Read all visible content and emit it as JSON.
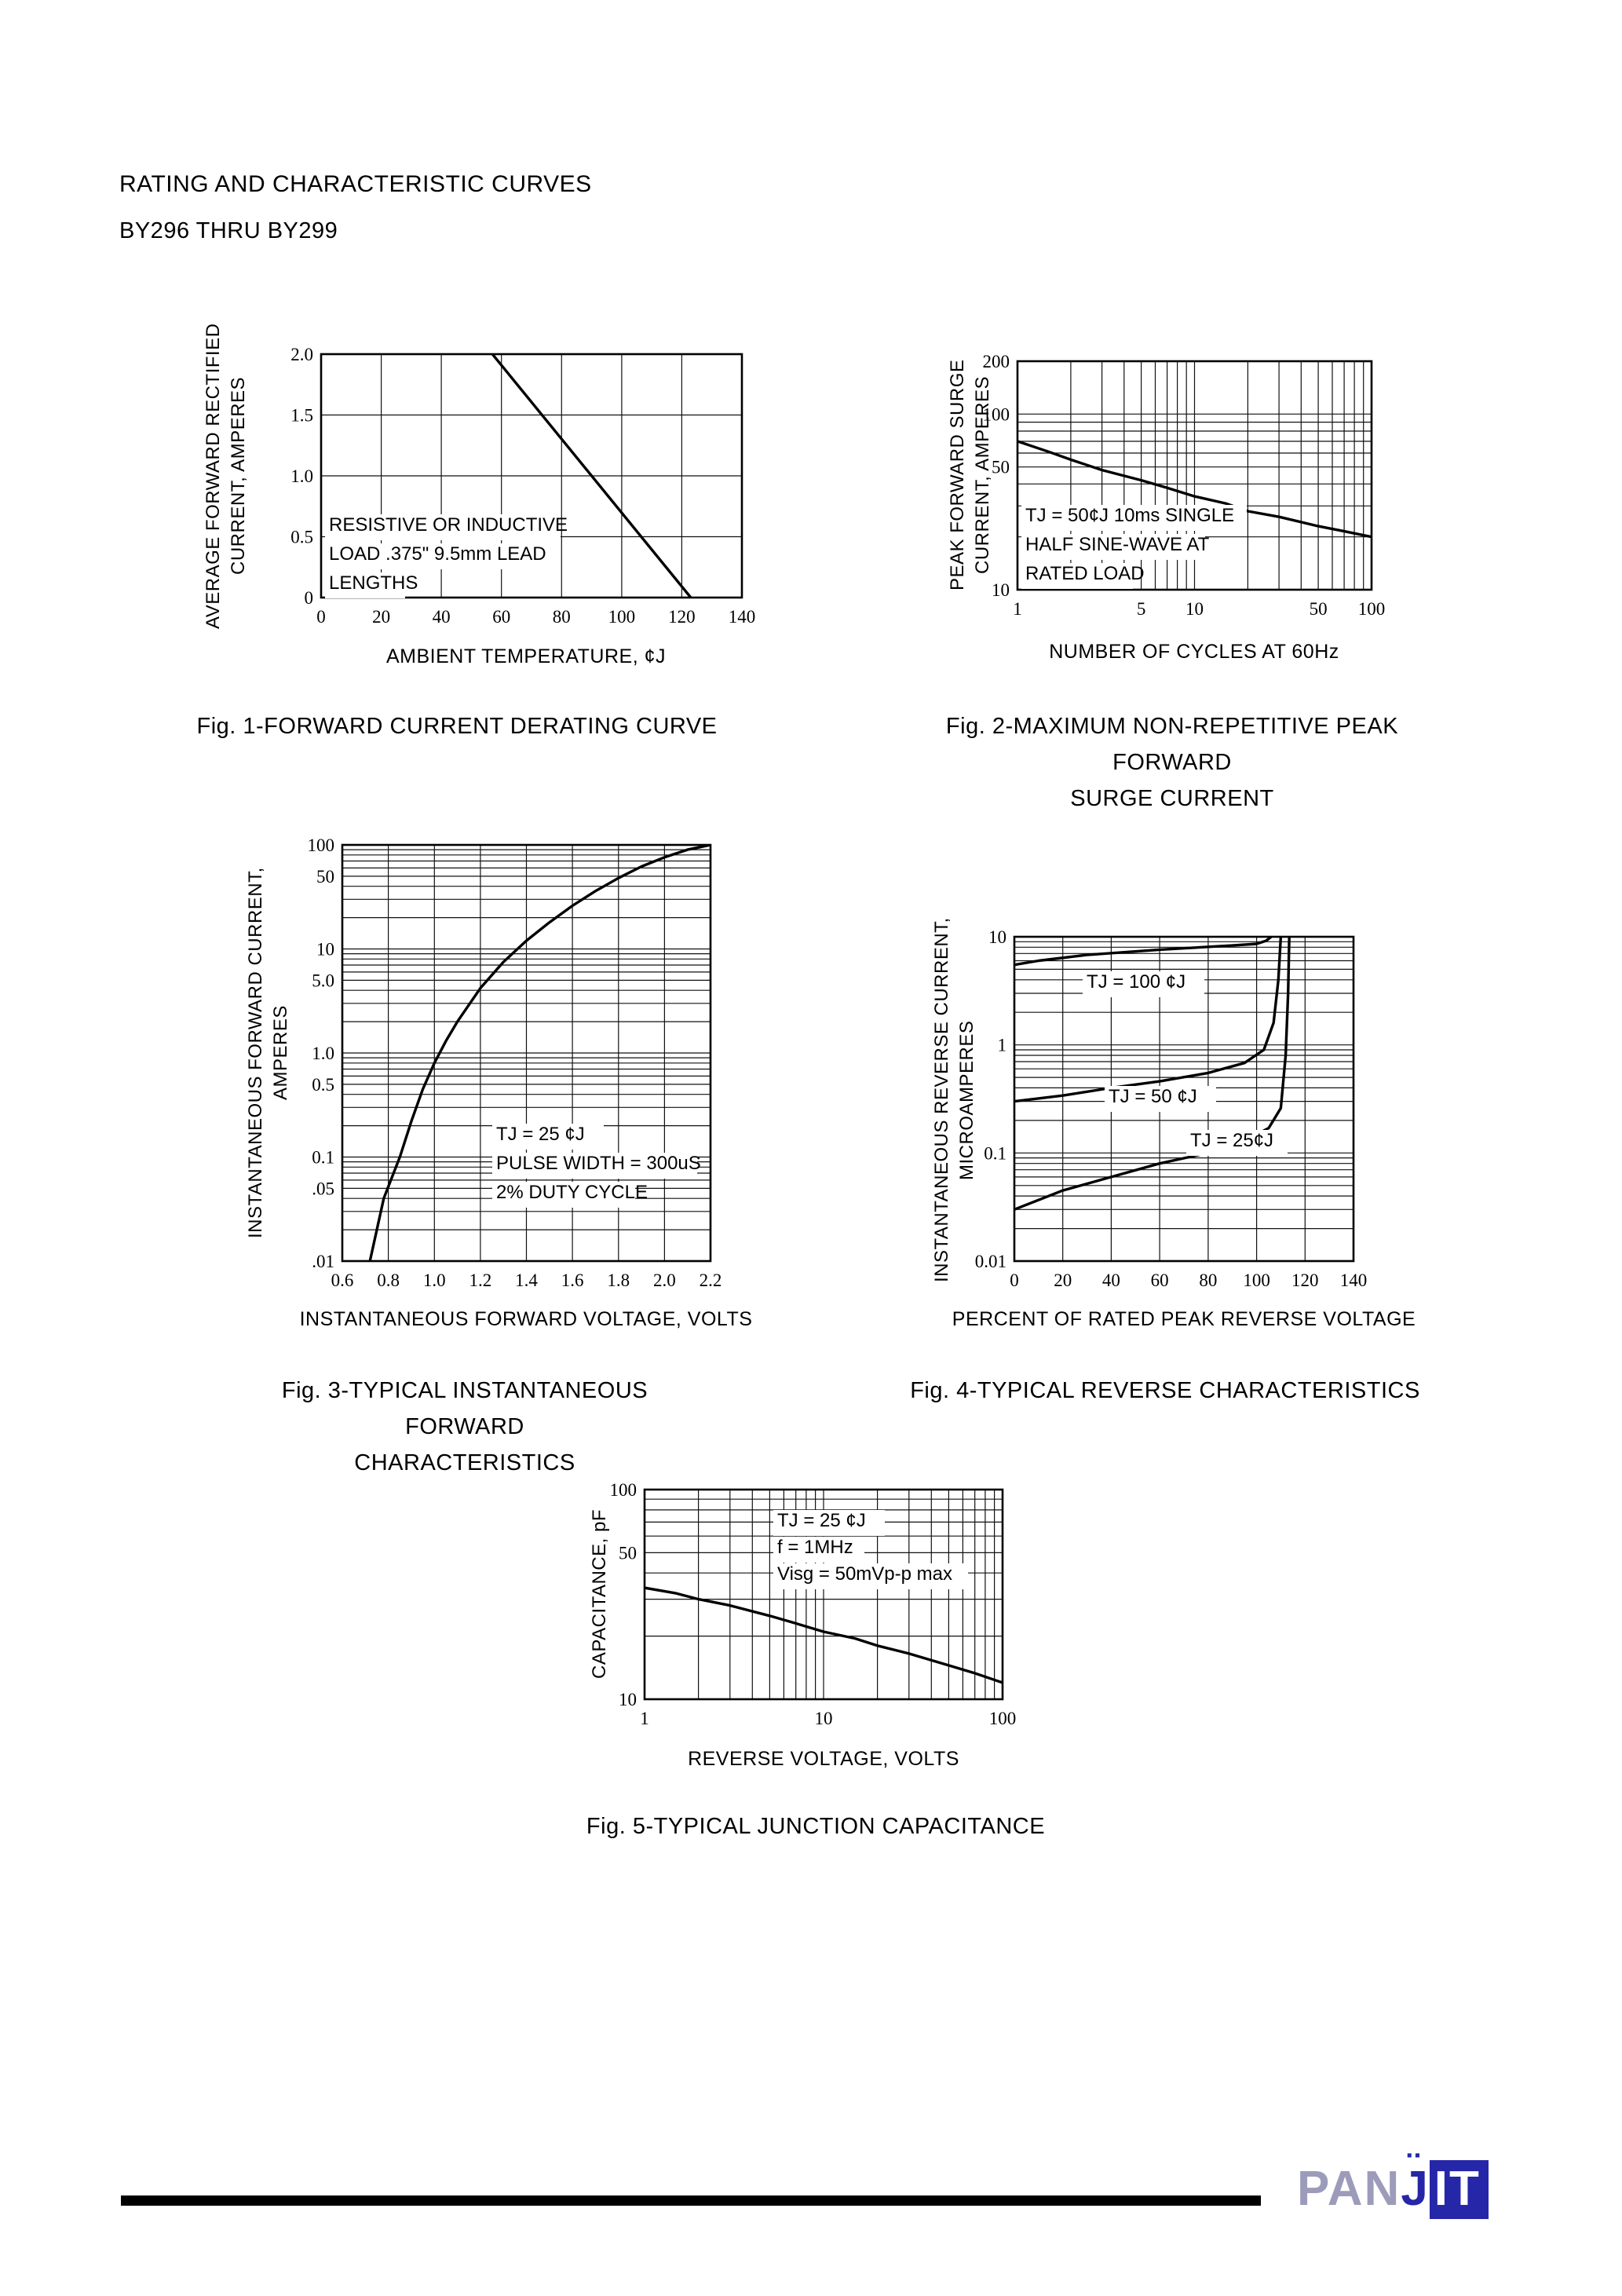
{
  "page": {
    "title": "RATING AND CHARACTERISTIC CURVES",
    "subtitle": "BY296 THRU BY299"
  },
  "footer": {
    "brand_pan": "PAN",
    "brand_j": "J",
    "brand_it": "IT",
    "brand_color": "#2626a8"
  },
  "chart_data": [
    {
      "id": "fig1",
      "type": "line",
      "title": "Fig. 1-FORWARD CURRENT DERATING CURVE",
      "xlabel": "AMBIENT TEMPERATURE, ¢J",
      "ylabel_lines": [
        "AVERAGE FORWARD RECTIFIED",
        "CURRENT, AMPERES"
      ],
      "xscale": "linear",
      "yscale": "linear",
      "xlim": [
        0,
        140
      ],
      "ylim": [
        0,
        2.0
      ],
      "xticks": [
        {
          "v": 0,
          "l": "0"
        },
        {
          "v": 20,
          "l": "20"
        },
        {
          "v": 40,
          "l": "40"
        },
        {
          "v": 60,
          "l": "60"
        },
        {
          "v": 80,
          "l": "80"
        },
        {
          "v": 100,
          "l": "100"
        },
        {
          "v": 120,
          "l": "120"
        },
        {
          "v": 140,
          "l": "140"
        }
      ],
      "yticks": [
        {
          "v": 2.0,
          "l": "2.0"
        },
        {
          "v": 1.5,
          "l": "1.5"
        },
        {
          "v": 1.0,
          "l": "1.0"
        },
        {
          "v": 0.5,
          "l": "0.5"
        },
        {
          "v": 0,
          "l": "0"
        }
      ],
      "series": [
        {
          "name": "derating-curve",
          "points": [
            [
              57,
              2.0
            ],
            [
              123,
              0
            ]
          ]
        }
      ],
      "annotations": [
        {
          "lines": [
            "RESISTIVE OR INDUCTIVE",
            "LOAD .375\" 9.5mm LEAD",
            "LENGTHS"
          ]
        }
      ]
    },
    {
      "id": "fig2",
      "type": "line",
      "title": "Fig. 2-MAXIMUM NON-REPETITIVE PEAK FORWARD SURGE CURRENT",
      "title_lines": [
        "Fig. 2-MAXIMUM NON-REPETITIVE PEAK FORWARD",
        "SURGE CURRENT"
      ],
      "xlabel": "NUMBER OF CYCLES AT 60Hz",
      "ylabel_lines": [
        "PEAK FORWARD SURGE",
        "CURRENT, AMPERES"
      ],
      "xscale": "log",
      "yscale": "log",
      "xlim": [
        1,
        100
      ],
      "ylim": [
        10,
        200
      ],
      "xticks": [
        {
          "v": 1,
          "l": "1"
        },
        {
          "v": 5,
          "l": "5"
        },
        {
          "v": 10,
          "l": "10"
        },
        {
          "v": 50,
          "l": "50"
        },
        {
          "v": 100,
          "l": "100"
        }
      ],
      "yticks": [
        {
          "v": 200,
          "l": "200"
        },
        {
          "v": 100,
          "l": "100"
        },
        {
          "v": 50,
          "l": "50"
        },
        {
          "v": 10,
          "l": "10"
        }
      ],
      "series": [
        {
          "name": "surge-current-curve",
          "points": [
            [
              1,
              70
            ],
            [
              1.5,
              61
            ],
            [
              2,
              55
            ],
            [
              3,
              48
            ],
            [
              5,
              42
            ],
            [
              7,
              38
            ],
            [
              10,
              34
            ],
            [
              15,
              31
            ],
            [
              20,
              28
            ],
            [
              30,
              26
            ],
            [
              50,
              23
            ],
            [
              70,
              21.5
            ],
            [
              100,
              20
            ]
          ]
        }
      ],
      "annotations": [
        {
          "lines": [
            "TJ = 50¢J 10ms SINGLE",
            "HALF SINE-WAVE AT",
            "RATED LOAD"
          ]
        }
      ]
    },
    {
      "id": "fig3",
      "type": "line",
      "title": "Fig. 3-TYPICAL INSTANTANEOUS FORWARD CHARACTERISTICS",
      "title_lines": [
        "Fig. 3-TYPICAL INSTANTANEOUS FORWARD",
        "CHARACTERISTICS"
      ],
      "xlabel": "INSTANTANEOUS FORWARD VOLTAGE, VOLTS",
      "ylabel_lines": [
        "INSTANTANEOUS FORWARD CURRENT,",
        "AMPERES"
      ],
      "xscale": "linear",
      "yscale": "log",
      "xlim": [
        0.6,
        2.2
      ],
      "ylim": [
        0.01,
        100
      ],
      "xticks": [
        {
          "v": 0.6,
          "l": "0.6"
        },
        {
          "v": 0.8,
          "l": "0.8"
        },
        {
          "v": 1.0,
          "l": "1.0"
        },
        {
          "v": 1.2,
          "l": "1.2"
        },
        {
          "v": 1.4,
          "l": "1.4"
        },
        {
          "v": 1.6,
          "l": "1.6"
        },
        {
          "v": 1.8,
          "l": "1.8"
        },
        {
          "v": 2.0,
          "l": "2.0"
        },
        {
          "v": 2.2,
          "l": "2.2"
        }
      ],
      "yticks": [
        {
          "v": 100,
          "l": "100"
        },
        {
          "v": 50,
          "l": "50"
        },
        {
          "v": 10,
          "l": "10"
        },
        {
          "v": 5,
          "l": "5.0"
        },
        {
          "v": 1,
          "l": "1.0"
        },
        {
          "v": 0.5,
          "l": "0.5"
        },
        {
          "v": 0.1,
          "l": "0.1"
        },
        {
          "v": 0.05,
          "l": ".05"
        },
        {
          "v": 0.01,
          "l": ".01"
        }
      ],
      "series": [
        {
          "name": "forward-characteristic-curve",
          "points": [
            [
              0.72,
              0.01
            ],
            [
              0.78,
              0.04
            ],
            [
              0.85,
              0.1
            ],
            [
              0.9,
              0.22
            ],
            [
              0.95,
              0.45
            ],
            [
              1.0,
              0.8
            ],
            [
              1.05,
              1.3
            ],
            [
              1.1,
              2.0
            ],
            [
              1.2,
              4.2
            ],
            [
              1.3,
              7.5
            ],
            [
              1.4,
              12
            ],
            [
              1.5,
              18
            ],
            [
              1.6,
              26
            ],
            [
              1.7,
              36
            ],
            [
              1.8,
              48
            ],
            [
              1.9,
              62
            ],
            [
              2.0,
              76
            ],
            [
              2.1,
              90
            ],
            [
              2.2,
              100
            ]
          ]
        }
      ],
      "annotations": [
        {
          "lines": [
            "TJ = 25 ¢J",
            "PULSE WIDTH = 300uS",
            "2% DUTY CYCLE"
          ]
        }
      ]
    },
    {
      "id": "fig4",
      "type": "line",
      "title": "Fig. 4-TYPICAL REVERSE CHARACTERISTICS",
      "xlabel": "PERCENT OF RATED PEAK REVERSE VOLTAGE",
      "ylabel_lines": [
        "INSTANTANEOUS REVERSE CURRENT,",
        "MICROAMPERES"
      ],
      "xscale": "linear",
      "yscale": "log",
      "xlim": [
        0,
        140
      ],
      "ylim": [
        0.01,
        10
      ],
      "xticks": [
        {
          "v": 0,
          "l": "0"
        },
        {
          "v": 20,
          "l": "20"
        },
        {
          "v": 40,
          "l": "40"
        },
        {
          "v": 60,
          "l": "60"
        },
        {
          "v": 80,
          "l": "80"
        },
        {
          "v": 100,
          "l": "100"
        },
        {
          "v": 120,
          "l": "120"
        },
        {
          "v": 140,
          "l": "140"
        }
      ],
      "yticks": [
        {
          "v": 10,
          "l": "10"
        },
        {
          "v": 1,
          "l": "1"
        },
        {
          "v": 0.1,
          "l": "0.1"
        },
        {
          "v": 0.01,
          "l": "0.01"
        }
      ],
      "series": [
        {
          "name": "tj-100-curve",
          "points": [
            [
              0,
              5.5
            ],
            [
              10,
              6.0
            ],
            [
              30,
              6.8
            ],
            [
              60,
              7.6
            ],
            [
              90,
              8.3
            ],
            [
              100,
              8.6
            ],
            [
              104,
              9.2
            ],
            [
              106,
              10
            ]
          ]
        },
        {
          "name": "tj-50-curve",
          "points": [
            [
              0,
              0.3
            ],
            [
              20,
              0.34
            ],
            [
              40,
              0.4
            ],
            [
              60,
              0.46
            ],
            [
              80,
              0.55
            ],
            [
              95,
              0.68
            ],
            [
              103,
              0.9
            ],
            [
              107,
              1.6
            ],
            [
              109,
              4
            ],
            [
              110,
              10
            ]
          ]
        },
        {
          "name": "tj-25-curve",
          "points": [
            [
              0,
              0.03
            ],
            [
              20,
              0.045
            ],
            [
              40,
              0.06
            ],
            [
              60,
              0.08
            ],
            [
              80,
              0.1
            ],
            [
              95,
              0.13
            ],
            [
              105,
              0.17
            ],
            [
              110,
              0.26
            ],
            [
              112,
              0.8
            ],
            [
              113,
              3
            ],
            [
              113.5,
              10
            ]
          ]
        }
      ],
      "annotations": [
        {
          "lines": [
            "TJ = 100 ¢J"
          ]
        },
        {
          "lines": [
            "TJ = 50 ¢J"
          ]
        },
        {
          "lines": [
            "TJ = 25¢J"
          ]
        }
      ]
    },
    {
      "id": "fig5",
      "type": "line",
      "title": "Fig. 5-TYPICAL JUNCTION CAPACITANCE",
      "xlabel": "REVERSE VOLTAGE, VOLTS",
      "ylabel_lines": [
        "CAPACITANCE, pF"
      ],
      "xscale": "log",
      "yscale": "log",
      "xlim": [
        1,
        100
      ],
      "ylim": [
        10,
        100
      ],
      "xticks": [
        {
          "v": 1,
          "l": "1"
        },
        {
          "v": 10,
          "l": "10"
        },
        {
          "v": 100,
          "l": "100"
        }
      ],
      "yticks": [
        {
          "v": 100,
          "l": "100"
        },
        {
          "v": 50,
          "l": "50"
        },
        {
          "v": 10,
          "l": "10"
        }
      ],
      "series": [
        {
          "name": "capacitance-curve",
          "points": [
            [
              1,
              34
            ],
            [
              1.5,
              32
            ],
            [
              2,
              30
            ],
            [
              3,
              28
            ],
            [
              5,
              25
            ],
            [
              7,
              23
            ],
            [
              10,
              21
            ],
            [
              15,
              19.5
            ],
            [
              20,
              18
            ],
            [
              30,
              16.5
            ],
            [
              50,
              14.5
            ],
            [
              70,
              13.3
            ],
            [
              100,
              12
            ]
          ]
        }
      ],
      "annotations": [
        {
          "lines": [
            "TJ = 25 ¢J",
            "f = 1MHz",
            "Visg = 50mVp-p max"
          ]
        }
      ]
    }
  ]
}
